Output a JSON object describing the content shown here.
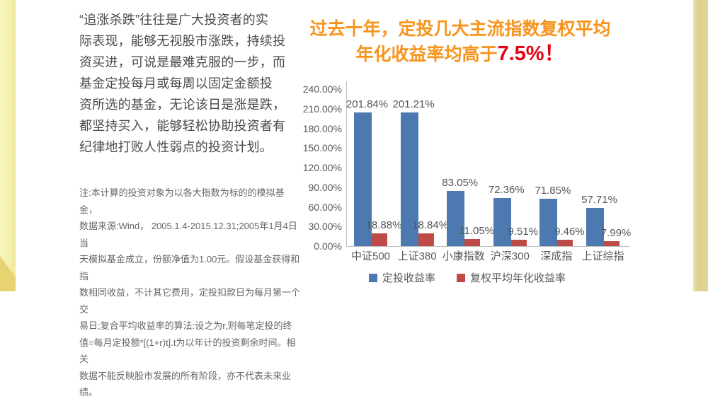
{
  "decor": {
    "left_strip_color": "#f5f1ad",
    "left_strip_gold": "#e7d372",
    "right_strip_color": "#ded291"
  },
  "left_column": {
    "paragraph": "“追涨杀跌”往往是广大投资者的实\n际表现，能够无视股市涨跌，持续投\n资买进，可说是最难克服的一步，而\n基金定投每月或每周以固定金额投\n资所选的基金，无论该日是涨是跌，\n都坚持买入，能够轻松协助投资者有\n纪律地打败人性弱点的投资计划。",
    "note": "注:本计算的投资对象为以各大指数为标的的模拟基金，\n数据来源:Wind， 2005.1.4-2015.12.31;2005年1月4日当\n天模拟基金成立，份额净值为1.00元。假设基金获得和指\n数相同收益，不计其它费用，定投扣款日为每月第一个交\n易日;复合平均收益率的算法:设之为r,则每笔定投的终\n值=每月定投额*[(1+r)t].t为以年计的投资剩余时间。相关\n数据不能反映股市发展的所有阶段，亦不代表未来业绩。"
  },
  "title": {
    "line1": "过去十年，定投几大主流指数复权平均",
    "line2_prefix": "年化收益率均高于",
    "line2_highlight": "7.5%！",
    "orange_color": "#f7941d",
    "highlight_color": "#e60012"
  },
  "chart_data": {
    "type": "bar",
    "categories": [
      "中证500",
      "上证380",
      "小康指数",
      "沪深300",
      "深成指",
      "上证综指"
    ],
    "series": [
      {
        "name": "定投收益率",
        "color": "#4c7ab0",
        "values": [
          201.84,
          201.21,
          83.05,
          72.36,
          71.85,
          57.71
        ],
        "labels": [
          "201.84%",
          "201.21%",
          "83.05%",
          "72.36%",
          "71.85%",
          "57.71%"
        ]
      },
      {
        "name": "复权平均年化收益率",
        "color": "#be4b48",
        "values": [
          18.88,
          18.84,
          11.05,
          9.51,
          9.46,
          7.99
        ],
        "labels": [
          "18.88%",
          "18.84%",
          "11.05%",
          "9.51%",
          "9.46%",
          "7.99%"
        ]
      }
    ],
    "y_tick_labels": [
      "240.00%",
      "210.00%",
      "180.00%",
      "150.00%",
      "120.00%",
      "90.00%",
      "60.00%",
      "30.00%",
      "0.00%"
    ],
    "ylim": [
      0,
      240
    ],
    "grid": false,
    "legend_position": "bottom",
    "axis_color": "#bfbfbf",
    "label_color": "#595959"
  }
}
